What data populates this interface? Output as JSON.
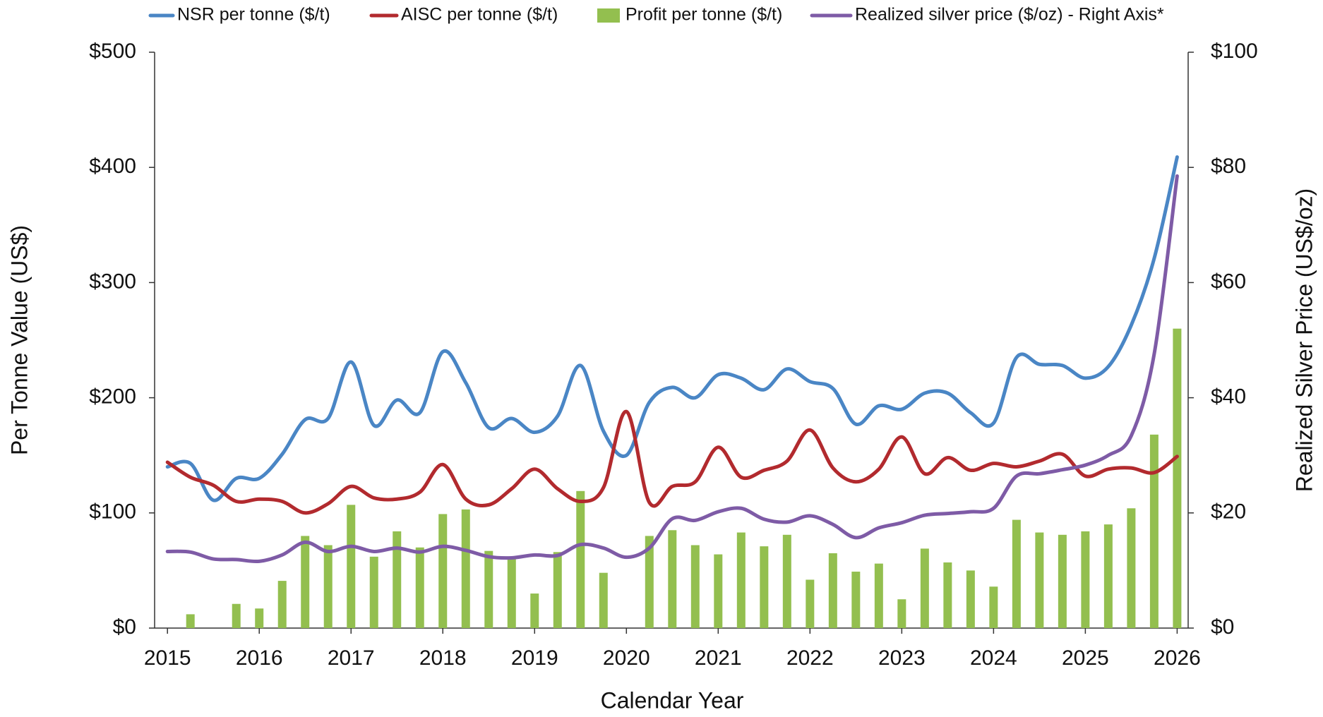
{
  "chart_data": {
    "type": "line",
    "xlabel": "Calendar Year",
    "ylabel": "Per Tonne Value (US$)",
    "y2label": "Realized Silver Price (US$/oz)",
    "x": [
      2015,
      2015.25,
      2015.5,
      2015.75,
      2016,
      2016.25,
      2016.5,
      2016.75,
      2017,
      2017.25,
      2017.5,
      2017.75,
      2018,
      2018.25,
      2018.5,
      2018.75,
      2019,
      2019.25,
      2019.5,
      2019.75,
      2020,
      2020.25,
      2020.5,
      2020.75,
      2021,
      2021.25,
      2021.5,
      2021.75,
      2022,
      2022.25,
      2022.5,
      2022.75,
      2023,
      2023.25,
      2023.5,
      2023.75,
      2024,
      2024.25,
      2024.5,
      2024.75,
      2025,
      2025.25,
      2025.5,
      2025.75,
      2026
    ],
    "series": [
      {
        "name": "NSR per tonne ($/t)",
        "color": "#4a86c5",
        "type": "line",
        "values": [
          140,
          143,
          111,
          130,
          130,
          151,
          181,
          182,
          231,
          176,
          198,
          187,
          240,
          213,
          174,
          182,
          170,
          184,
          228,
          171,
          150,
          196,
          209,
          200,
          220,
          217,
          207,
          225,
          214,
          208,
          177,
          193,
          190,
          204,
          204,
          187,
          178,
          235,
          229,
          228,
          217,
          227,
          263,
          321,
          409
        ]
      },
      {
        "name": "AISC per tonne ($/t)",
        "color": "#b22a2e",
        "type": "line",
        "values": [
          144,
          131,
          124,
          110,
          112,
          110,
          100,
          108,
          123,
          113,
          112,
          118,
          142,
          112,
          107,
          121,
          138,
          121,
          110,
          122,
          188,
          109,
          123,
          127,
          157,
          131,
          137,
          145,
          172,
          139,
          127,
          138,
          166,
          134,
          148,
          137,
          143,
          140,
          145,
          151,
          132,
          138,
          139,
          135,
          149
        ]
      },
      {
        "name": "Profit per tonne ($/t)",
        "color": "#93bf4f",
        "type": "bar",
        "values": [
          0,
          12,
          0,
          21,
          17,
          41,
          80,
          72,
          107,
          62,
          84,
          70,
          99,
          103,
          67,
          62,
          30,
          66,
          119,
          48,
          0,
          80,
          85,
          72,
          64,
          83,
          71,
          81,
          42,
          65,
          49,
          56,
          25,
          69,
          57,
          50,
          36,
          94,
          83,
          81,
          84,
          90,
          104,
          168,
          260
        ]
      },
      {
        "name": "Realized silver price ($/oz) - Right Axis*",
        "color": "#7e5ba6",
        "type": "line",
        "axis": "y2",
        "values": [
          13.3,
          13.2,
          12.0,
          11.9,
          11.6,
          12.7,
          14.9,
          13.3,
          14.2,
          13.3,
          13.9,
          13.2,
          14.2,
          13.5,
          12.4,
          12.2,
          12.7,
          12.6,
          14.5,
          13.9,
          12.3,
          13.9,
          19.0,
          18.7,
          20.2,
          20.8,
          18.9,
          18.4,
          19.5,
          18.0,
          15.7,
          17.4,
          18.3,
          19.6,
          19.9,
          20.2,
          20.8,
          26.4,
          26.8,
          27.5,
          28.3,
          30.0,
          33.4,
          47.6,
          78.5
        ]
      }
    ],
    "xlim": [
      2014.86,
      2026.12
    ],
    "xticks": [
      2015,
      2016,
      2017,
      2018,
      2019,
      2020,
      2021,
      2022,
      2023,
      2024,
      2025,
      2026
    ],
    "ylim": [
      0,
      500
    ],
    "yticks": [
      {
        "value": 0,
        "label": "$0"
      },
      {
        "value": 100,
        "label": "$100"
      },
      {
        "value": 200,
        "label": "$200"
      },
      {
        "value": 300,
        "label": "$300"
      },
      {
        "value": 400,
        "label": "$400"
      },
      {
        "value": 500,
        "label": "$500"
      }
    ],
    "y2lim": [
      0,
      100
    ],
    "y2ticks": [
      {
        "value": 0,
        "label": "$0"
      },
      {
        "value": 20,
        "label": "$20"
      },
      {
        "value": 40,
        "label": "$40"
      },
      {
        "value": 60,
        "label": "$60"
      },
      {
        "value": 80,
        "label": "$80"
      },
      {
        "value": 100,
        "label": "$100"
      }
    ],
    "grid": false,
    "legend": "top"
  }
}
